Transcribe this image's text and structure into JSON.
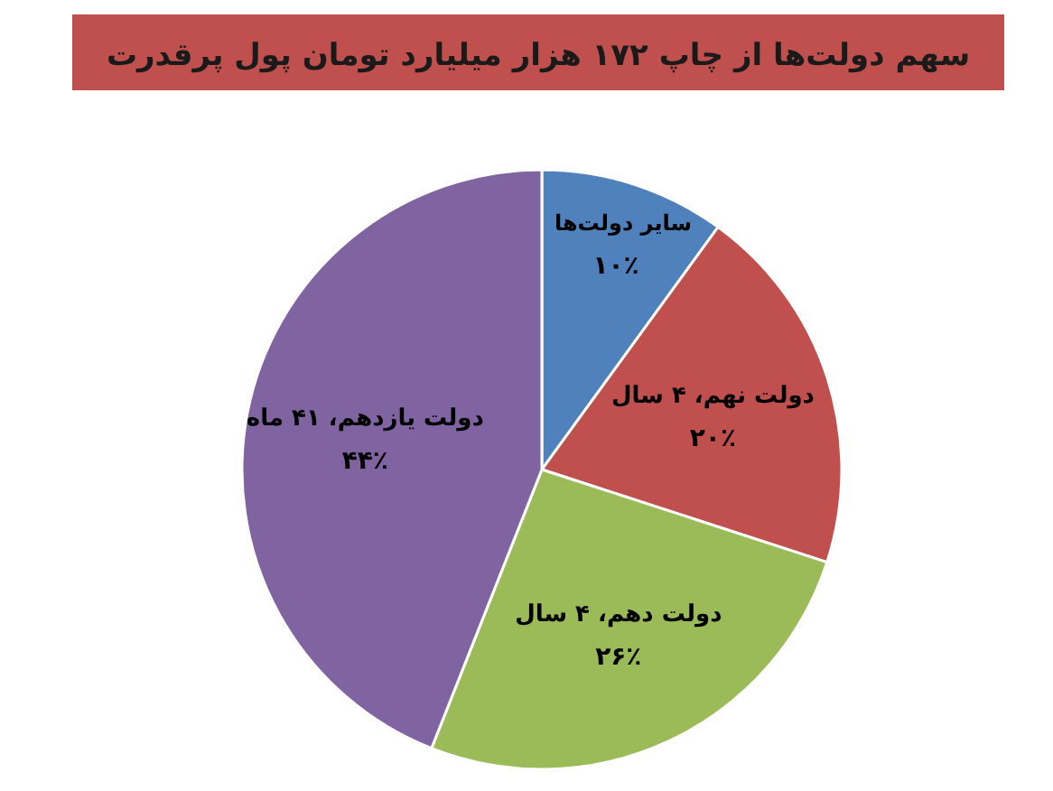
{
  "chart_data": {
    "type": "pie",
    "title": "سهم دولت‌ها از چاپ ۱۷۲ هزار میلیارد تومان پول پرقدرت",
    "categories": [
      "سایر دولت‌ها",
      "دولت نهم، ۴ سال",
      "دولت دهم، ۴ سال",
      "دولت یازدهم، ۴۱ ماه"
    ],
    "values": [
      10,
      20,
      26,
      44
    ],
    "colors": [
      "#4f81bd",
      "#c0504d",
      "#9bbb59",
      "#8064a2"
    ],
    "value_labels": [
      "۱۰٪",
      "۲۰٪",
      "۲۶٪",
      "۴۴٪"
    ],
    "legend": false
  }
}
